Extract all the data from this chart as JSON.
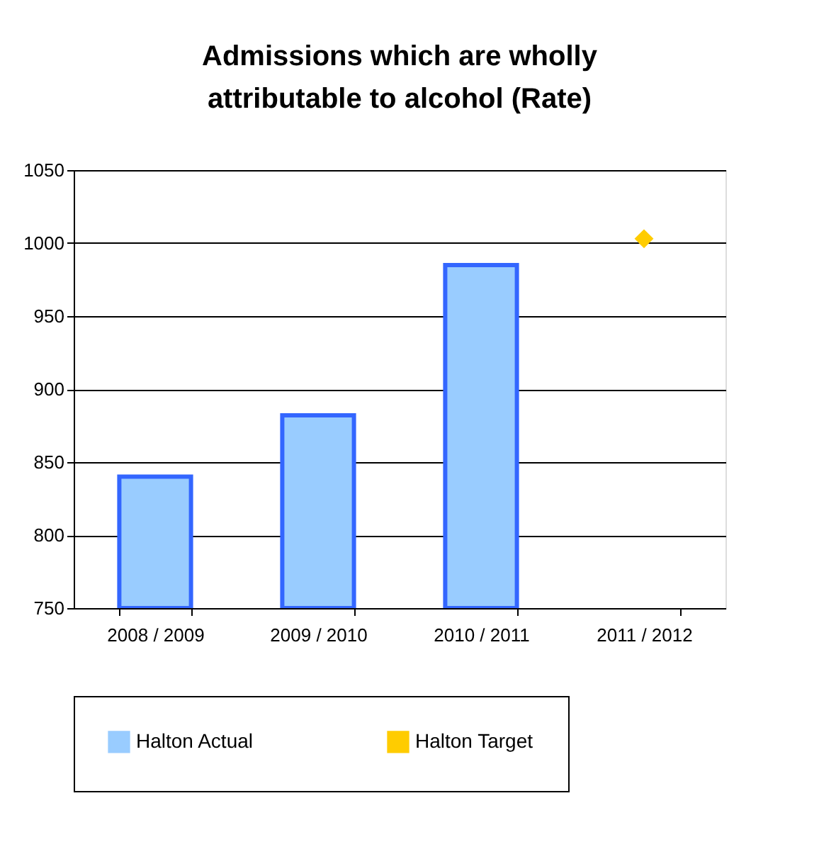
{
  "chart_data": {
    "type": "bar",
    "title": "Admissions which are wholly attributable to alcohol (Rate)",
    "categories": [
      "2008 / 2009",
      "2009 / 2010",
      "2010 / 2011",
      "2011 / 2012"
    ],
    "series": [
      {
        "name": "Halton Actual",
        "color": "#99ccff",
        "values": [
          840,
          882,
          985,
          null
        ]
      },
      {
        "name": "Halton Target",
        "type": "line",
        "color": "#ffcc00",
        "values": [
          null,
          null,
          null,
          1003
        ]
      }
    ],
    "ylim": [
      750,
      1050
    ],
    "yticks": [
      750,
      800,
      850,
      900,
      950,
      1000,
      1050
    ],
    "grid": "y",
    "legend": "bottom",
    "marker": "diamond"
  }
}
